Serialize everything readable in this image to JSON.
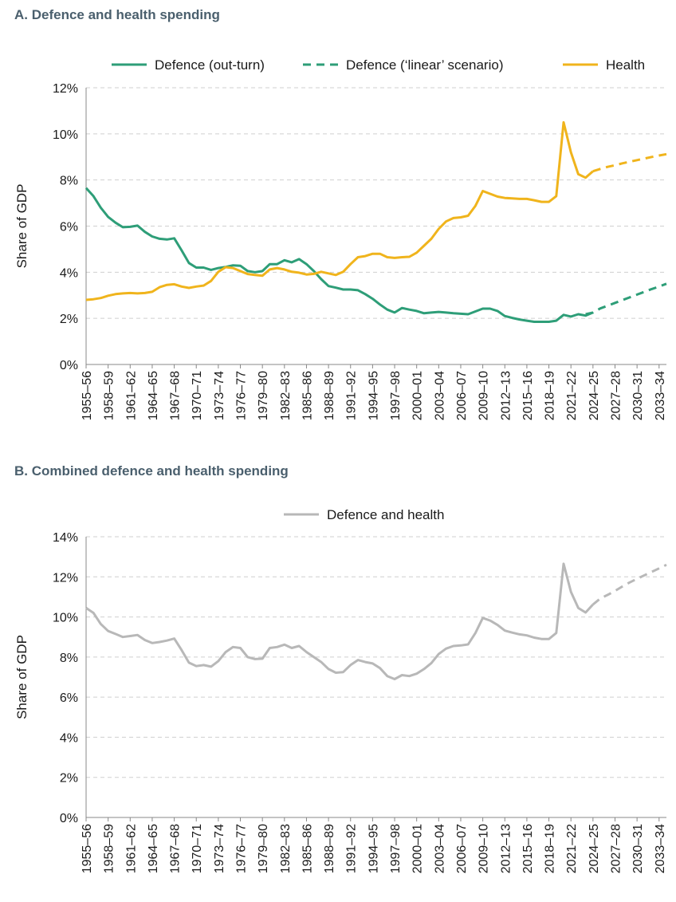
{
  "chart_data": [
    {
      "type": "line",
      "title": "A. Defence and health spending",
      "ylabel": "Share of GDP",
      "ylim": [
        0,
        12
      ],
      "yticks": [
        "0%",
        "2%",
        "4%",
        "6%",
        "8%",
        "10%",
        "12%"
      ],
      "grid": true,
      "legend_position": "top",
      "x_start": 1955,
      "x_end": 2034,
      "tick_labels": [
        "1955–56",
        "1958–59",
        "1961–62",
        "1964–65",
        "1967–68",
        "1970–71",
        "1973–74",
        "1976–77",
        "1979–80",
        "1982–83",
        "1985–86",
        "1988–89",
        "1991–92",
        "1994–95",
        "1997–98",
        "2000–01",
        "2003–04",
        "2006–07",
        "2009–10",
        "2012–13",
        "2015–16",
        "2018–19",
        "2021–22",
        "2024–25",
        "2027–28",
        "2030–31",
        "2033–34"
      ],
      "series": [
        {
          "name": "Defence (out-turn)",
          "color": "#2e9e78",
          "dash": false,
          "start": 1955,
          "values": [
            7.65,
            7.3,
            6.8,
            6.4,
            6.15,
            5.95,
            5.97,
            6.02,
            5.75,
            5.55,
            5.45,
            5.42,
            5.47,
            4.95,
            4.4,
            4.2,
            4.2,
            4.1,
            4.18,
            4.23,
            4.3,
            4.28,
            4.05,
            4.0,
            4.05,
            4.35,
            4.35,
            4.52,
            4.43,
            4.57,
            4.35,
            4.05,
            3.7,
            3.4,
            3.33,
            3.25,
            3.25,
            3.22,
            3.05,
            2.85,
            2.6,
            2.38,
            2.25,
            2.45,
            2.38,
            2.32,
            2.22,
            2.25,
            2.28,
            2.25,
            2.22,
            2.2,
            2.18,
            2.3,
            2.42,
            2.42,
            2.32,
            2.1,
            2.02,
            1.95,
            1.9,
            1.85,
            1.85,
            1.85,
            1.9,
            2.15,
            2.08,
            2.18,
            2.12,
            2.25
          ]
        },
        {
          "name": "Defence (‘linear’ scenario)",
          "color": "#2e9e78",
          "dash": true,
          "start": 2023,
          "values": [
            2.18,
            2.25,
            2.43,
            2.55,
            2.67,
            2.79,
            2.91,
            3.03,
            3.15,
            3.27,
            3.38,
            3.5
          ]
        },
        {
          "name": "Health",
          "color": "#f0b41c",
          "dash": false,
          "start": 1955,
          "values": [
            2.8,
            2.83,
            2.88,
            2.98,
            3.05,
            3.08,
            3.1,
            3.08,
            3.1,
            3.15,
            3.35,
            3.45,
            3.48,
            3.38,
            3.32,
            3.38,
            3.42,
            3.62,
            4.02,
            4.22,
            4.18,
            4.05,
            3.92,
            3.88,
            3.85,
            4.12,
            4.18,
            4.12,
            4.02,
            3.98,
            3.9,
            3.93,
            4.02,
            3.95,
            3.88,
            4.02,
            4.35,
            4.65,
            4.7,
            4.8,
            4.8,
            4.65,
            4.62,
            4.65,
            4.67,
            4.85,
            5.15,
            5.45,
            5.88,
            6.2,
            6.35,
            6.38,
            6.45,
            6.88,
            7.52,
            7.4,
            7.28,
            7.22,
            7.2,
            7.18,
            7.18,
            7.12,
            7.05,
            7.05,
            7.3,
            10.5,
            9.2,
            8.25,
            8.1,
            8.38
          ]
        },
        {
          "name": "",
          "color": "#f0b41c",
          "dash": true,
          "start": 2024,
          "values": [
            8.38,
            8.48,
            8.57,
            8.64,
            8.72,
            8.79,
            8.86,
            8.93,
            9.0,
            9.06,
            9.12
          ]
        }
      ],
      "legend": [
        "Defence (out-turn)",
        "Defence (‘linear’ scenario)",
        "Health"
      ]
    },
    {
      "type": "line",
      "title": "B. Combined defence and health spending",
      "ylabel": "Share of GDP",
      "ylim": [
        0,
        14
      ],
      "yticks": [
        "0%",
        "2%",
        "4%",
        "6%",
        "8%",
        "10%",
        "12%",
        "14%"
      ],
      "grid": true,
      "legend_position": "top",
      "x_start": 1955,
      "x_end": 2034,
      "tick_labels": [
        "1955–56",
        "1958–59",
        "1961–62",
        "1964–65",
        "1967–68",
        "1970–71",
        "1973–74",
        "1976–77",
        "1979–80",
        "1982–83",
        "1985–86",
        "1988–89",
        "1991–92",
        "1994–95",
        "1997–98",
        "2000–01",
        "2003–04",
        "2006–07",
        "2009–10",
        "2012–13",
        "2015–16",
        "2018–19",
        "2021–22",
        "2024–25",
        "2027–28",
        "2030–31",
        "2033–34"
      ],
      "series": [
        {
          "name": "Defence and health",
          "color": "#b8b8b8",
          "dash": false,
          "start": 1955,
          "values": [
            10.45,
            10.2,
            9.65,
            9.3,
            9.15,
            9.0,
            9.05,
            9.1,
            8.85,
            8.7,
            8.75,
            8.82,
            8.92,
            8.35,
            7.72,
            7.55,
            7.6,
            7.52,
            7.8,
            8.25,
            8.5,
            8.45,
            8.0,
            7.9,
            7.92,
            8.45,
            8.5,
            8.62,
            8.45,
            8.55,
            8.25,
            8.0,
            7.75,
            7.4,
            7.22,
            7.25,
            7.6,
            7.85,
            7.75,
            7.68,
            7.45,
            7.05,
            6.9,
            7.1,
            7.05,
            7.17,
            7.4,
            7.7,
            8.15,
            8.42,
            8.55,
            8.58,
            8.63,
            9.2,
            9.95,
            9.82,
            9.6,
            9.32,
            9.22,
            9.13,
            9.08,
            8.97,
            8.9,
            8.9,
            9.2,
            12.65,
            11.25,
            10.45,
            10.22,
            10.62
          ]
        },
        {
          "name": "",
          "color": "#b8b8b8",
          "dash": true,
          "start": 2024,
          "values": [
            10.62,
            10.92,
            11.1,
            11.3,
            11.52,
            11.72,
            11.9,
            12.08,
            12.25,
            12.42,
            12.6
          ]
        }
      ],
      "legend": [
        "Defence and health"
      ]
    }
  ]
}
